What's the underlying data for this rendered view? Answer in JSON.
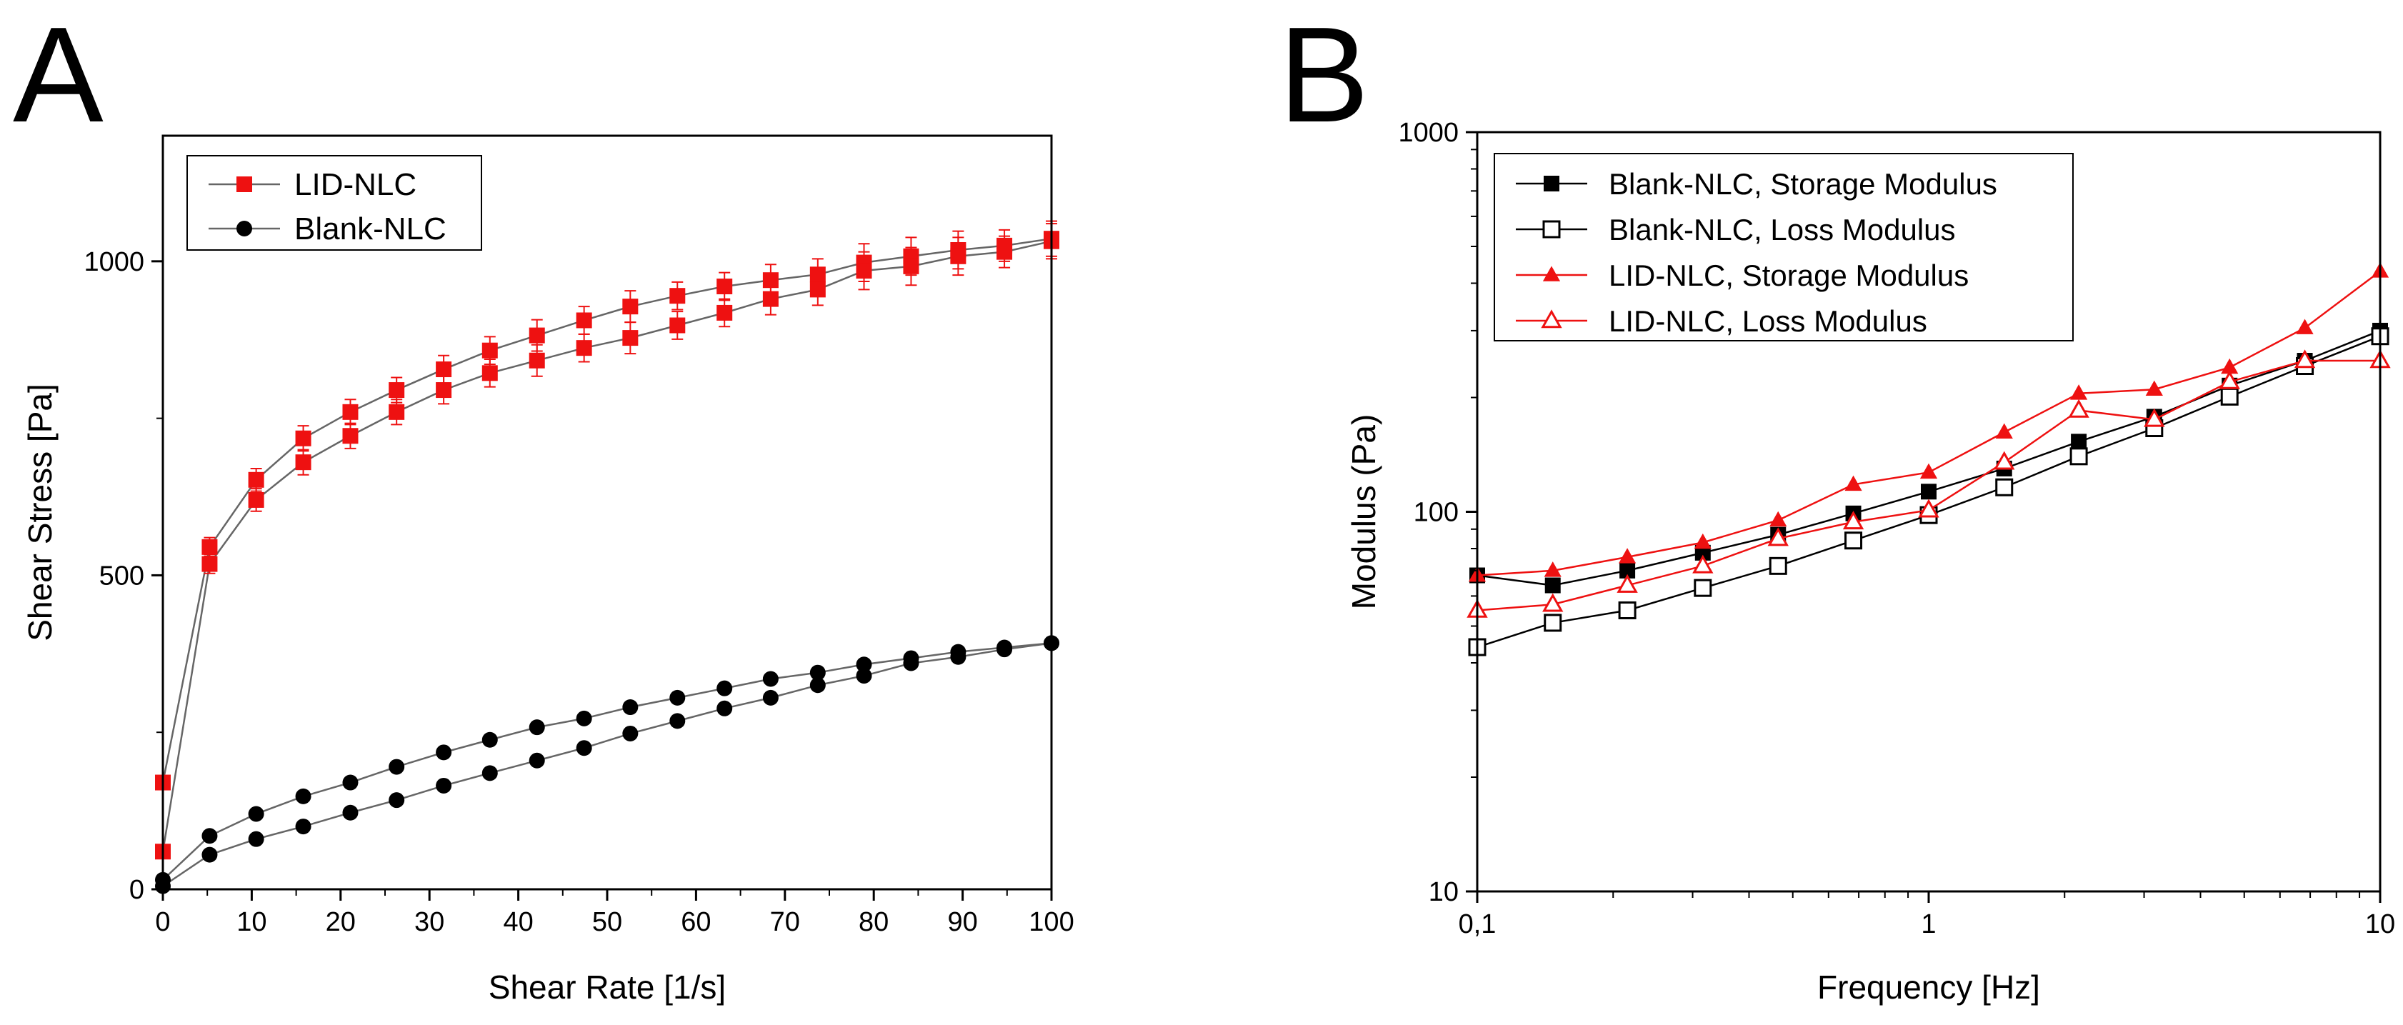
{
  "panels": [
    "A",
    "B"
  ],
  "chart_data": [
    {
      "type": "line",
      "panel_label": "A",
      "title": "",
      "xlabel": "Shear Rate [1/s]",
      "ylabel": "Shear Stress [Pa]",
      "xlim": [
        0,
        100
      ],
      "ylim": [
        0,
        1200
      ],
      "xticks": [
        0,
        10,
        20,
        30,
        40,
        50,
        60,
        70,
        80,
        90,
        100
      ],
      "yticks": [
        0,
        500,
        1000
      ],
      "legend_position": "top-left",
      "grid": false,
      "x": [
        0,
        5.26,
        10.5,
        15.8,
        21.1,
        26.3,
        31.6,
        36.8,
        42.1,
        47.4,
        52.6,
        57.9,
        63.2,
        68.4,
        73.7,
        78.9,
        84.2,
        89.5,
        94.7,
        100
      ],
      "series": [
        {
          "name": "LID-NLC",
          "color": "#ee1111",
          "marker": "square",
          "up": [
            170,
            545,
            652,
            718,
            760,
            795,
            828,
            858,
            882,
            906,
            928,
            945,
            960,
            970,
            979,
            998,
            1008,
            1018,
            1025,
            1036
          ],
          "down": [
            60,
            518,
            620,
            680,
            722,
            760,
            795,
            822,
            842,
            862,
            878,
            898,
            918,
            940,
            955,
            985,
            992,
            1008,
            1015,
            1032
          ],
          "error": [
            0,
            15,
            18,
            20,
            20,
            20,
            22,
            22,
            25,
            22,
            25,
            22,
            22,
            25,
            25,
            30,
            30,
            30,
            25,
            28
          ]
        },
        {
          "name": "Blank-NLC",
          "color": "#000000",
          "marker": "circle",
          "up": [
            15,
            85,
            120,
            148,
            170,
            195,
            218,
            238,
            258,
            272,
            290,
            305,
            320,
            335,
            345,
            358,
            368,
            378,
            385,
            392
          ],
          "down": [
            5,
            55,
            80,
            100,
            122,
            142,
            165,
            185,
            205,
            225,
            248,
            268,
            288,
            305,
            325,
            340,
            360,
            370,
            382,
            392
          ]
        }
      ]
    },
    {
      "type": "line",
      "panel_label": "B",
      "title": "",
      "xlabel": "Frequency [Hz]",
      "ylabel": "Modulus (Pa)",
      "xscale": "log",
      "yscale": "log",
      "xlim": [
        0.1,
        10
      ],
      "ylim": [
        10,
        1000
      ],
      "xtick_labels": [
        "0,1",
        "1",
        "10"
      ],
      "ytick_labels": [
        "10",
        "100",
        "1000"
      ],
      "legend_position": "top-left",
      "grid": false,
      "x": [
        0.1,
        0.147,
        0.215,
        0.316,
        0.464,
        0.681,
        1.0,
        1.47,
        2.15,
        3.16,
        4.64,
        6.81,
        10.0
      ],
      "series": [
        {
          "name": "Blank-NLC, Storage Modulus",
          "color": "#000000",
          "marker": "square-filled",
          "values": [
            68,
            64,
            70,
            78,
            87,
            99,
            113,
            130,
            153,
            178,
            215,
            250,
            300
          ]
        },
        {
          "name": "Blank-NLC, Loss Modulus",
          "color": "#000000",
          "marker": "square-open",
          "values": [
            44,
            51,
            55,
            63,
            72,
            84,
            98,
            116,
            140,
            166,
            201,
            242,
            290
          ]
        },
        {
          "name": "LID-NLC, Storage Modulus",
          "color": "#ee1111",
          "marker": "triangle-filled",
          "values": [
            68,
            70,
            76,
            83,
            95,
            118,
            127,
            162,
            205,
            210,
            240,
            305,
            430
          ]
        },
        {
          "name": "LID-NLC, Loss Modulus",
          "color": "#ee1111",
          "marker": "triangle-open",
          "values": [
            55,
            57,
            64,
            72,
            85,
            94,
            101,
            135,
            185,
            175,
            220,
            250,
            250
          ]
        }
      ]
    }
  ]
}
